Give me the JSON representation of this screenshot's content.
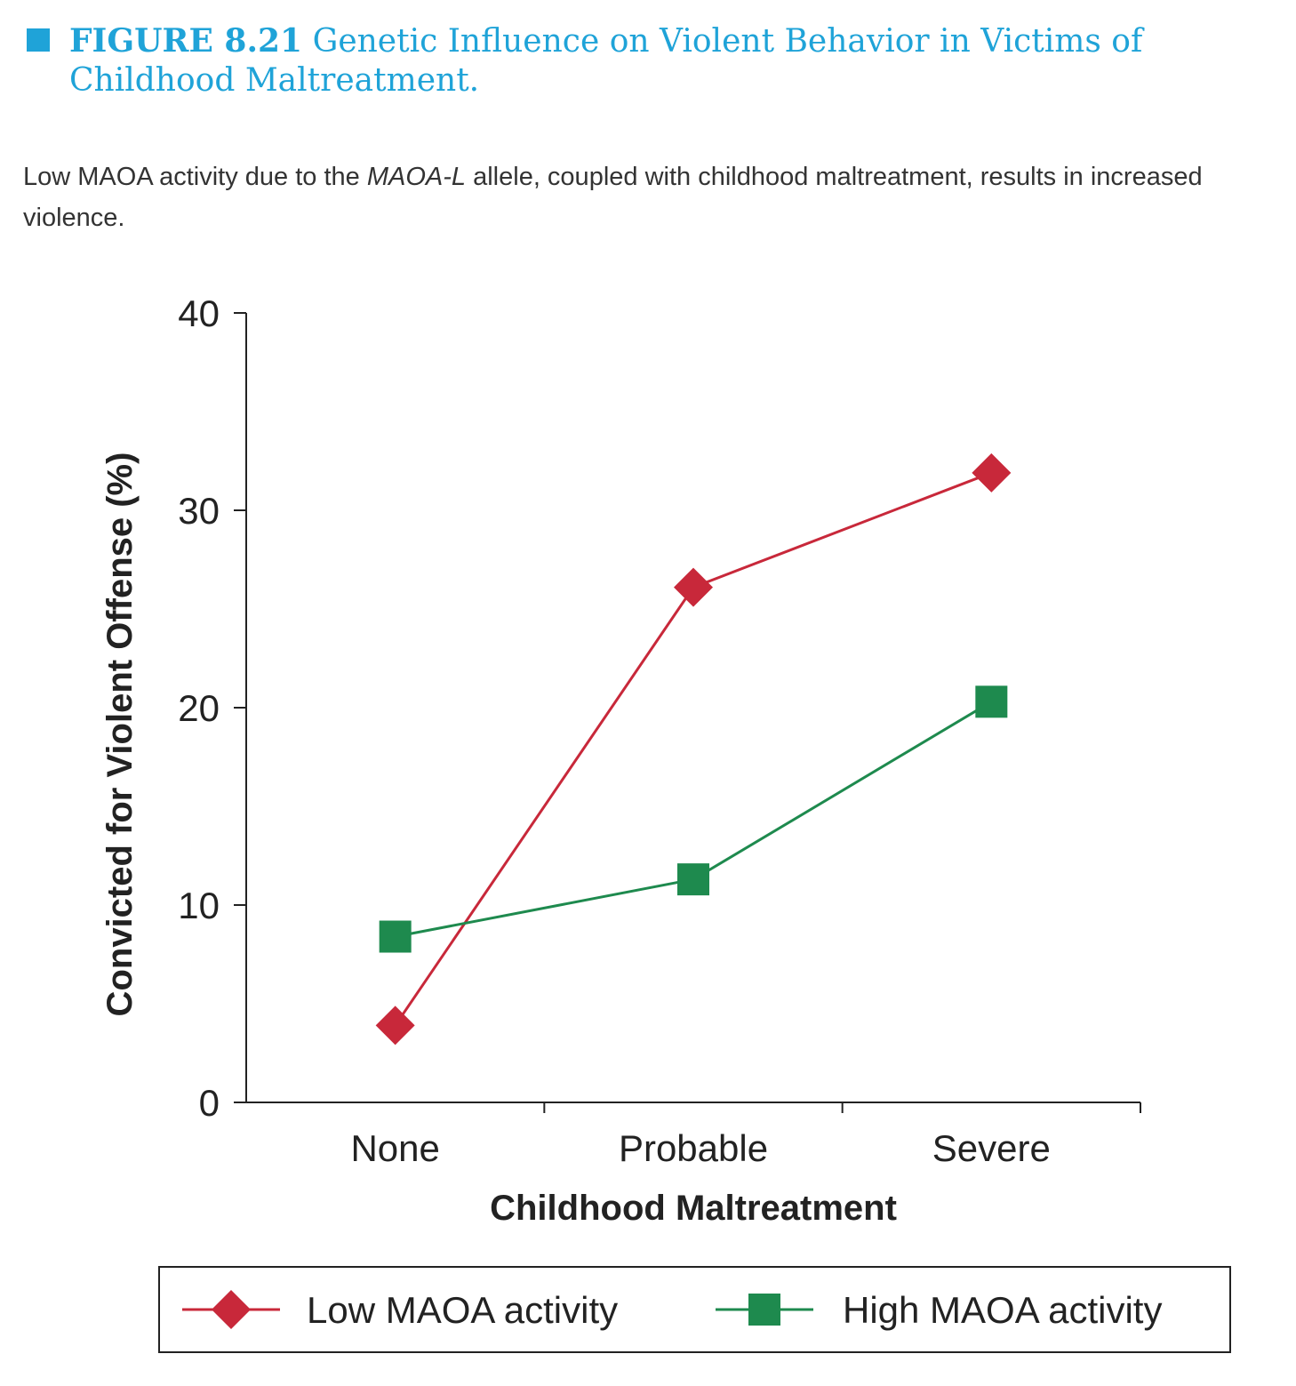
{
  "figure": {
    "label": "FIGURE 8.21",
    "title": "Genetic Influence on Violent Behavior in Victims of Childhood Maltreatment.",
    "accent_color": "#1fa3d8"
  },
  "caption": {
    "before": "Low MAOA activity due to the ",
    "italic": "MAOA-L",
    "after": " allele, coupled with childhood maltreatment, results in increased violence."
  },
  "chart_data": {
    "type": "line",
    "categories": [
      "None",
      "Probable",
      "Severe"
    ],
    "xlabel": "Childhood Maltreatment",
    "ylabel": "Convicted for Violent Offense (%)",
    "ylim": [
      0,
      40
    ],
    "yticks": [
      0,
      10,
      20,
      30,
      40
    ],
    "grid": false,
    "legend_position": "bottom",
    "series": [
      {
        "name": "Low MAOA activity",
        "values": [
          3.9,
          26.1,
          31.9
        ],
        "color": "#c8283a",
        "marker": "diamond"
      },
      {
        "name": "High MAOA activity",
        "values": [
          8.4,
          11.3,
          20.3
        ],
        "color": "#1e8a4e",
        "marker": "square"
      }
    ]
  }
}
